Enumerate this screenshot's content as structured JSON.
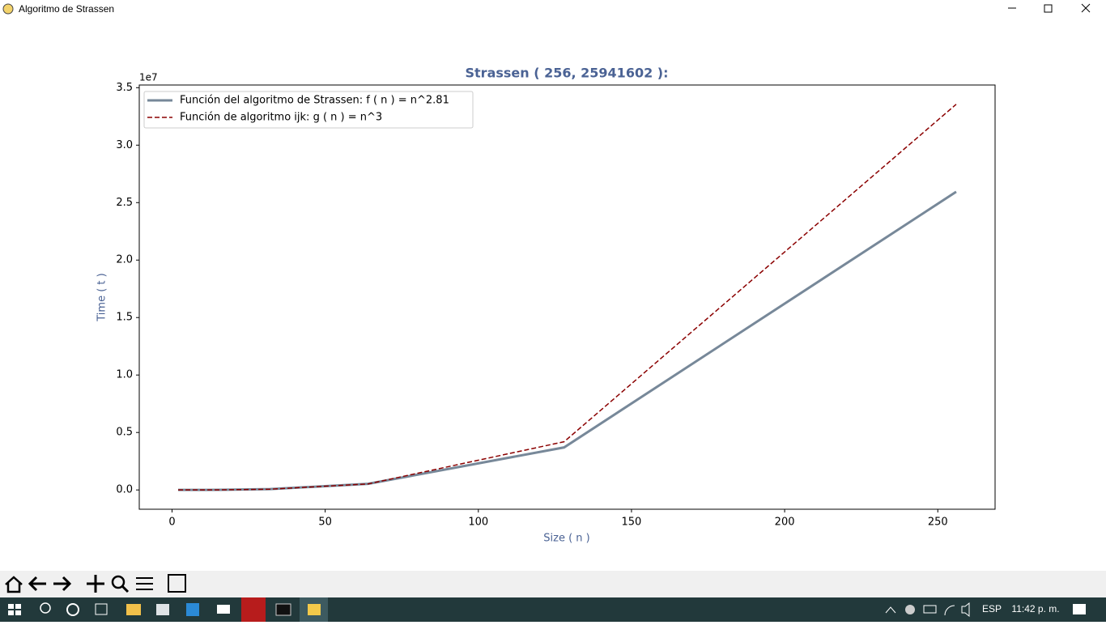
{
  "window": {
    "title": "Algoritmo de Strassen"
  },
  "chart_data": {
    "type": "line",
    "title": "Strassen ( 256, 25941602 ):",
    "x_label": "Size ( n )",
    "y_label": "Time ( t )",
    "y_offset_label": "1e7",
    "x": [
      2,
      4,
      8,
      16,
      32,
      64,
      128,
      256
    ],
    "series": [
      {
        "name": "Función del algoritmo de Strassen: f ( n ) = n^2.81",
        "color": "#778899",
        "linestyle": "solid",
        "linewidth": 3,
        "values": [
          30,
          200,
          1500,
          10000,
          75000,
          530000,
          3700000,
          25941602
        ]
      },
      {
        "name": "Función de algoritmo ijk: g ( n ) = n^3",
        "color": "#8b0000",
        "linestyle": "dashed",
        "linewidth": 1.5,
        "values": [
          16,
          128,
          1024,
          8192,
          65536,
          524288,
          4194304,
          33554432
        ]
      }
    ],
    "xlim": [
      -10.7,
      268.7
    ],
    "ylim": [
      -1677705,
      35232153
    ],
    "xticks": [
      0,
      50,
      100,
      150,
      200,
      250
    ],
    "yticks": [
      {
        "value": 0,
        "label": "0.0"
      },
      {
        "value": 5000000,
        "label": "0.5"
      },
      {
        "value": 10000000,
        "label": "1.0"
      },
      {
        "value": 15000000,
        "label": "1.5"
      },
      {
        "value": 20000000,
        "label": "2.0"
      },
      {
        "value": 25000000,
        "label": "2.5"
      },
      {
        "value": 30000000,
        "label": "3.0"
      },
      {
        "value": 35000000,
        "label": "3.5"
      }
    ],
    "legend": "upper left",
    "grid": false
  },
  "taskbar": {
    "language": "ESP",
    "time": "11:42 p. m."
  }
}
